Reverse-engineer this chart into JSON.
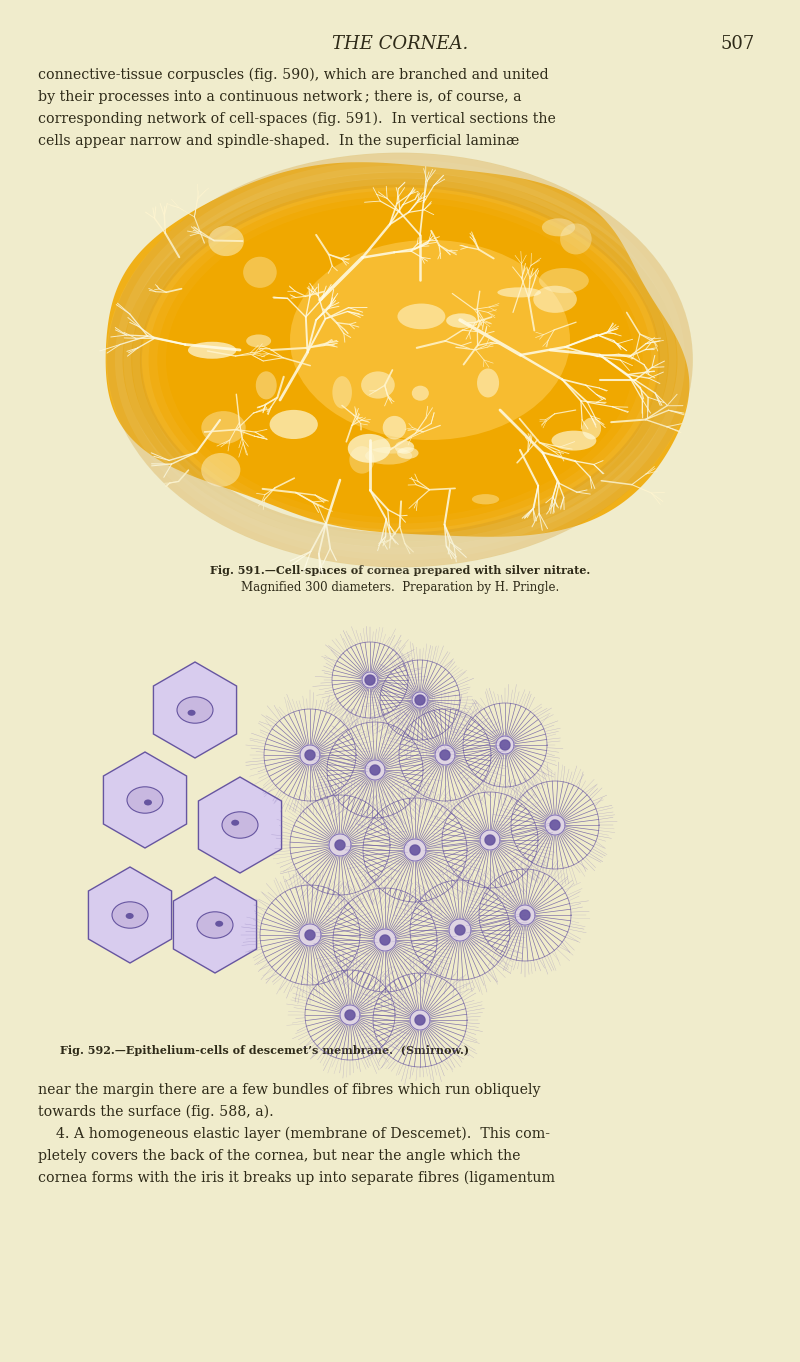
{
  "background_color": "#f0eccc",
  "page_number": "507",
  "header_text": "THE CORNEA.",
  "body_text_top_lines": [
    "connective-tissue corpuscles (fig. 590), which are branched and united",
    "by their processes into a continuous network ; there is, of course, a",
    "corresponding network of cell-spaces (fig. 591).  In vertical sections the",
    "cells appear narrow and spindle-shaped.  In the superficial laminæ"
  ],
  "fig591_caption_line1": "Fig. 591.—Cell-spaces of cornea prepared with silver nitrate.",
  "fig591_caption_line2": "Magnified 300 diameters.  Preparation by H. Pringle.",
  "fig592_caption": "Fig. 592.—Epithelium-cells of descemet’s membrane.  (Smirnow.)",
  "body_text_bottom_lines": [
    "near the margin there are a few bundles of fibres which run obliquely",
    "towards the surface (fig. 588, a).",
    "    4. A homogeneous elastic layer (membrane of Descemet).  This com-",
    "pletely covers the back of the cornea, but near the angle which the",
    "cornea forms with the iris it breaks up into separate fibres (ligamentum"
  ],
  "text_color": "#2e2a18",
  "caption_color": "#2e2a18",
  "yellow_main": "#f0a800",
  "yellow_dark": "#cc8800",
  "yellow_light": "#ffd060",
  "yellow_pale": "#ffe8a0",
  "purple_main": "#8878b8",
  "purple_dark": "#6655a0",
  "purple_light": "#c8b8e0",
  "purple_fill": "#d8ccee"
}
